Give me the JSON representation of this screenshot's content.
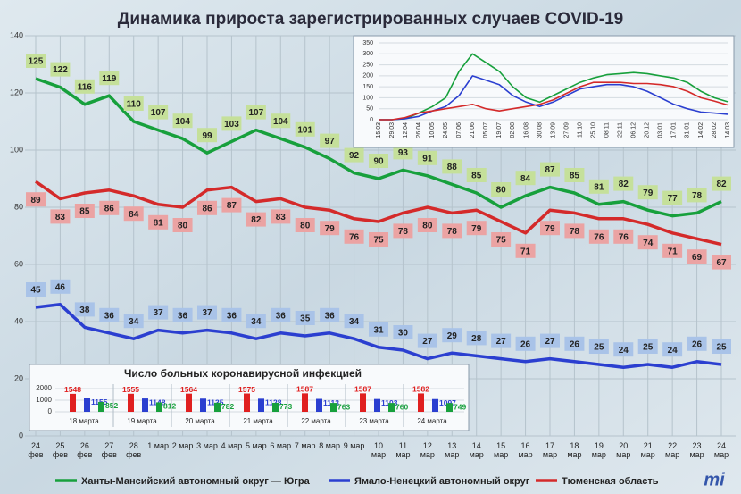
{
  "chart_data": [
    {
      "type": "line",
      "title": "Динамика прироста зарегистрированных случаев COVID-19",
      "categories": [
        "24 фев",
        "25 фев",
        "26 фев",
        "27 фев",
        "28 фев",
        "1 мар",
        "2 мар",
        "3 мар",
        "4 мар",
        "5 мар",
        "6 мар",
        "7 мар",
        "8 мар",
        "9 мар",
        "10 мар",
        "11 мар",
        "12 мар",
        "13 мар",
        "14 мар",
        "15 мар",
        "16 мар",
        "17 мар",
        "18 мар",
        "19 мар",
        "20 мар",
        "21 мар",
        "22 мар",
        "23 мар",
        "24 мар"
      ],
      "series": [
        {
          "name": "Ханты-Мансийский автономный округ — Югра",
          "color": "#17a03c",
          "values": [
            125,
            122,
            116,
            119,
            110,
            107,
            104,
            99,
            103,
            107,
            104,
            101,
            97,
            92,
            90,
            93,
            91,
            88,
            85,
            80,
            84,
            87,
            85,
            81,
            82,
            79,
            77,
            78,
            82
          ]
        },
        {
          "name": "Ямало-Ненецкий автономный округ",
          "color": "#2b3fd0",
          "values": [
            45,
            46,
            38,
            36,
            34,
            37,
            36,
            37,
            36,
            34,
            36,
            35,
            36,
            34,
            31,
            30,
            27,
            29,
            28,
            27,
            26,
            27,
            26,
            25,
            24,
            25,
            24,
            26,
            25
          ]
        },
        {
          "name": "Тюменская область",
          "color": "#d42a2a",
          "values": [
            89,
            83,
            85,
            86,
            84,
            81,
            80,
            86,
            87,
            82,
            83,
            80,
            79,
            76,
            75,
            78,
            80,
            78,
            79,
            75,
            71,
            79,
            78,
            76,
            76,
            74,
            71,
            69,
            67
          ]
        }
      ],
      "ylim": [
        0,
        140
      ],
      "yticks": [
        0,
        20,
        40,
        60,
        80,
        100,
        120,
        140
      ],
      "grid": true
    },
    {
      "type": "line",
      "categories": [
        "15.03",
        "29.03",
        "12.04",
        "26.04",
        "10.05",
        "24.05",
        "07.06",
        "21.06",
        "05.07",
        "19.07",
        "02.08",
        "16.08",
        "30.08",
        "13.09",
        "27.09",
        "11.10",
        "25.10",
        "08.11",
        "22.11",
        "06.12",
        "20.12",
        "03.01",
        "17.01",
        "31.01",
        "14.02",
        "28.02",
        "14.03"
      ],
      "series": [
        {
          "color": "#17a03c",
          "values": [
            0,
            0,
            5,
            30,
            60,
            100,
            220,
            300,
            260,
            220,
            150,
            100,
            80,
            110,
            140,
            170,
            190,
            205,
            210,
            215,
            210,
            200,
            190,
            170,
            130,
            100,
            82
          ]
        },
        {
          "color": "#2b3fd0",
          "values": [
            0,
            0,
            5,
            15,
            40,
            60,
            110,
            200,
            180,
            160,
            110,
            80,
            60,
            80,
            110,
            140,
            150,
            160,
            160,
            150,
            130,
            100,
            70,
            50,
            35,
            30,
            25
          ]
        },
        {
          "color": "#d42a2a",
          "values": [
            0,
            0,
            10,
            30,
            40,
            50,
            60,
            70,
            50,
            40,
            50,
            60,
            70,
            90,
            120,
            150,
            170,
            170,
            170,
            165,
            165,
            160,
            150,
            130,
            100,
            85,
            67
          ]
        }
      ],
      "ylim": [
        0,
        350
      ],
      "yticks": [
        0,
        50,
        100,
        150,
        200,
        250,
        300,
        350
      ],
      "grid": true
    },
    {
      "type": "bar",
      "title": "Число больных коронавирусной инфекцией",
      "categories": [
        "18 марта",
        "19 марта",
        "20 марта",
        "21 марта",
        "22 марта",
        "23 марта",
        "24 марта"
      ],
      "series": [
        {
          "color": "#e02020",
          "values": [
            1548,
            1555,
            1564,
            1575,
            1587,
            1587,
            1582
          ]
        },
        {
          "color": "#2b3fd0",
          "values": [
            1155,
            1148,
            1135,
            1128,
            1113,
            1103,
            1097
          ]
        },
        {
          "color": "#17a03c",
          "values": [
            852,
            812,
            782,
            773,
            763,
            760,
            749
          ]
        }
      ],
      "ylim": [
        0,
        2000
      ],
      "yticks": [
        0,
        1000,
        2000
      ],
      "grid": true
    }
  ],
  "logo": "mi"
}
